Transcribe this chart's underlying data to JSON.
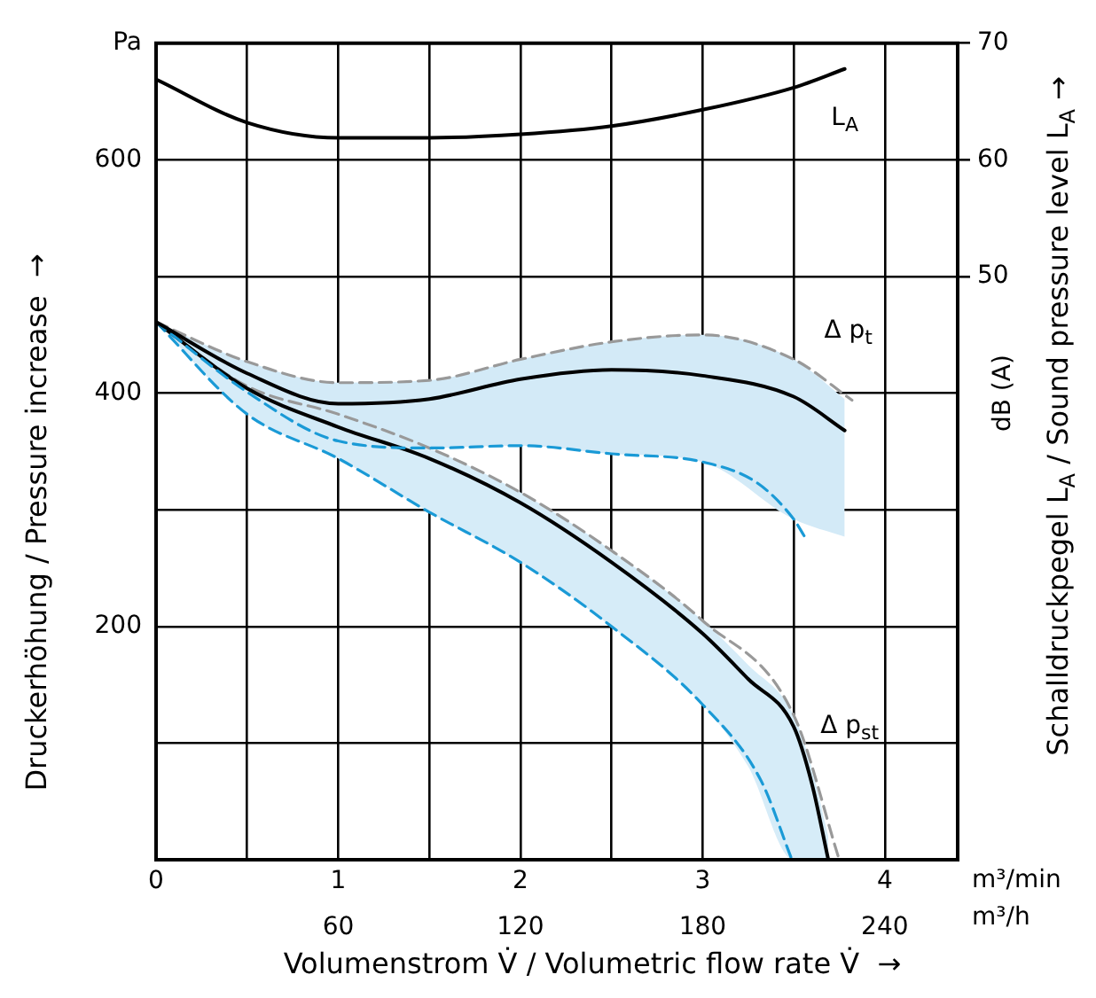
{
  "chart_data": {
    "type": "line",
    "xlabel": "Volumenstrom V̇ / Volumetric flow rate V̇  →",
    "ylabel": "Druckerhöhung / Pressure increase  →",
    "y2label": "Schalldruckpegel L$_{A}$ / Sound pressure level L$_{A}$ →",
    "annotations": [
      "m³/min",
      "m³/h",
      "dB (A)"
    ],
    "xlim": [
      0,
      4.4
    ],
    "xticks": [
      0,
      {
        "value": 0.5,
        "label": null
      },
      1,
      {
        "value": 1.5,
        "label": null
      },
      2,
      {
        "value": 2.5,
        "label": null
      },
      3,
      {
        "value": 3.5,
        "label": null
      },
      4
    ],
    "x2lim": [
      0,
      264
    ],
    "x2ticks": [
      60,
      120,
      180,
      240
    ],
    "ylim": [
      0,
      700
    ],
    "yticks": [
      {
        "value": 0,
        "label": null
      },
      {
        "value": 100,
        "label": null
      },
      200,
      {
        "value": 300,
        "label": null
      },
      400,
      {
        "value": 500,
        "label": null
      },
      600,
      {
        "value": 700,
        "label": "Pa"
      }
    ],
    "y2lim": [
      0,
      70
    ],
    "y2ticks": [
      50,
      60,
      70
    ],
    "grid": true,
    "legend": false,
    "marker": "none",
    "series": [
      {
        "name": "L$_{A}$",
        "color": "#000000",
        "axis": "y2",
        "line_style": "solid",
        "x": [
          0,
          0.5,
          1,
          1.5,
          2,
          2.5,
          3,
          3.5,
          3.78
        ],
        "values": [
          66.9,
          63.2,
          61.9,
          61.9,
          62.2,
          62.9,
          64.3,
          66.2,
          67.8
        ]
      },
      {
        "name": "Δ p$_{t}$",
        "color": "#000000",
        "line_style": "solid",
        "x": [
          0,
          0.5,
          1,
          1.5,
          2,
          2.5,
          3,
          3.5,
          3.78
        ],
        "values": [
          461,
          417,
          391,
          395,
          412,
          420,
          415,
          397,
          368
        ],
        "upper": [
          461,
          427,
          409,
          411,
          429,
          444,
          450,
          429,
          395
        ],
        "lower": [
          461,
          401,
          359,
          353,
          355,
          348,
          341,
          292,
          277
        ]
      },
      {
        "color": "#999999",
        "line_style": "dashed",
        "x": [
          0,
          0.5,
          1,
          1.5,
          2,
          2.5,
          3,
          3.5,
          3.82
        ],
        "values": [
          461,
          427,
          409,
          411,
          429,
          444,
          450,
          429,
          394
        ]
      },
      {
        "color": "#1a9ad6",
        "line_style": "dashed",
        "x": [
          0,
          0.5,
          1,
          1.5,
          2,
          2.5,
          3,
          3.3,
          3.5,
          3.56
        ],
        "values": [
          461,
          401,
          359,
          353,
          355,
          348,
          341,
          323,
          292,
          277
        ]
      },
      {
        "name": "Δ p$_{st}$",
        "color": "#000000",
        "line_style": "solid",
        "x": [
          0,
          0.5,
          1,
          1.5,
          2,
          2.5,
          3,
          3.25,
          3.5,
          3.6,
          3.69
        ],
        "values": [
          461,
          404,
          371,
          344,
          306,
          255,
          194,
          155,
          114,
          65,
          0
        ],
        "upper": [
          461,
          406,
          382,
          353,
          315,
          265,
          205,
          167,
          124,
          78,
          20
        ],
        "lower": [
          461,
          382,
          344,
          298,
          255,
          200,
          133,
          80,
          0,
          0,
          0
        ]
      },
      {
        "color": "#999999",
        "line_style": "dashed",
        "x": [
          0,
          0.5,
          1,
          1.5,
          2,
          2.5,
          3,
          3.5,
          3.75
        ],
        "values": [
          461,
          406,
          382,
          353,
          315,
          265,
          205,
          124,
          0
        ]
      },
      {
        "color": "#1a9ad6",
        "line_style": "dashed",
        "x": [
          0,
          0.5,
          1,
          1.5,
          2,
          2.5,
          3,
          3.32,
          3.49
        ],
        "values": [
          461,
          382,
          344,
          298,
          255,
          200,
          133,
          68,
          0
        ]
      }
    ]
  }
}
